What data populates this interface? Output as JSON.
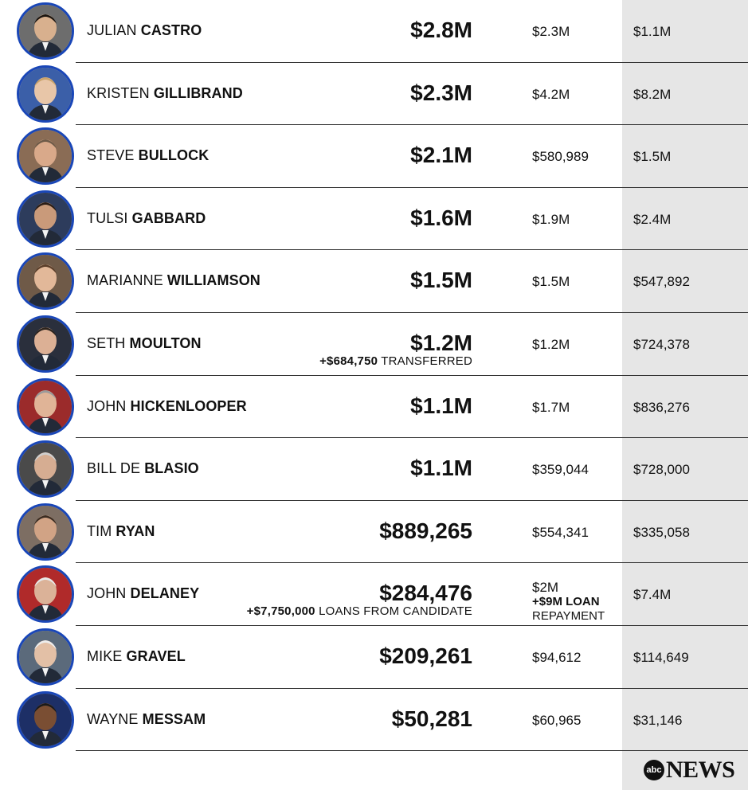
{
  "brand": {
    "badge": "abc",
    "wordmark": "NEWS"
  },
  "rows": [
    {
      "first": "JULIAN",
      "last": "CASTRO",
      "amount": "$2.8M",
      "note_bold": "",
      "note_rest": "",
      "col2": "$2.3M",
      "col2_extra_bold": "",
      "col2_extra": "",
      "col3": "$1.1M",
      "photo": "julian-castro-photo"
    },
    {
      "first": "KRISTEN",
      "last": "GILLIBRAND",
      "amount": "$2.3M",
      "note_bold": "",
      "note_rest": "",
      "col2": "$4.2M",
      "col2_extra_bold": "",
      "col2_extra": "",
      "col3": "$8.2M",
      "photo": "kristen-gillibrand-photo"
    },
    {
      "first": "STEVE",
      "last": "BULLOCK",
      "amount": "$2.1M",
      "note_bold": "",
      "note_rest": "",
      "col2": "$580,989",
      "col2_extra_bold": "",
      "col2_extra": "",
      "col3": "$1.5M",
      "photo": "steve-bullock-photo"
    },
    {
      "first": "TULSI",
      "last": "GABBARD",
      "amount": "$1.6M",
      "note_bold": "",
      "note_rest": "",
      "col2": "$1.9M",
      "col2_extra_bold": "",
      "col2_extra": "",
      "col3": "$2.4M",
      "photo": "tulsi-gabbard-photo"
    },
    {
      "first": "MARIANNE",
      "last": "WILLIAMSON",
      "amount": "$1.5M",
      "note_bold": "",
      "note_rest": "",
      "col2": "$1.5M",
      "col2_extra_bold": "",
      "col2_extra": "",
      "col3": "$547,892",
      "photo": "marianne-williamson-photo"
    },
    {
      "first": "SETH",
      "last": "MOULTON",
      "amount": "$1.2M",
      "note_bold": "+$684,750",
      "note_rest": " TRANSFERRED",
      "col2": "$1.2M",
      "col2_extra_bold": "",
      "col2_extra": "",
      "col3": "$724,378",
      "photo": "seth-moulton-photo"
    },
    {
      "first": "JOHN",
      "last": "HICKENLOOPER",
      "amount": "$1.1M",
      "note_bold": "",
      "note_rest": "",
      "col2": "$1.7M",
      "col2_extra_bold": "",
      "col2_extra": "",
      "col3": "$836,276",
      "photo": "john-hickenlooper-photo"
    },
    {
      "first": "BILL DE",
      "last": "BLASIO",
      "amount": "$1.1M",
      "note_bold": "",
      "note_rest": "",
      "col2": "$359,044",
      "col2_extra_bold": "",
      "col2_extra": "",
      "col3": "$728,000",
      "photo": "bill-de-blasio-photo"
    },
    {
      "first": "TIM",
      "last": "RYAN",
      "amount": "$889,265",
      "note_bold": "",
      "note_rest": "",
      "col2": "$554,341",
      "col2_extra_bold": "",
      "col2_extra": "",
      "col3": "$335,058",
      "photo": "tim-ryan-photo"
    },
    {
      "first": "JOHN",
      "last": "DELANEY",
      "amount": "$284,476",
      "note_bold": "+$7,750,000",
      "note_rest": " LOANS FROM CANDIDATE",
      "col2": "$2M",
      "col2_extra_bold": "+$9M LOAN",
      "col2_extra": "REPAYMENT",
      "col3": "$7.4M",
      "photo": "john-delaney-photo"
    },
    {
      "first": "MIKE",
      "last": "GRAVEL",
      "amount": "$209,261",
      "note_bold": "",
      "note_rest": "",
      "col2": "$94,612",
      "col2_extra_bold": "",
      "col2_extra": "",
      "col3": "$114,649",
      "photo": "mike-gravel-photo"
    },
    {
      "first": "WAYNE",
      "last": "MESSAM",
      "amount": "$50,281",
      "note_bold": "",
      "note_rest": "",
      "col2": "$60,965",
      "col2_extra_bold": "",
      "col2_extra": "",
      "col3": "$31,146",
      "photo": "wayne-messam-photo"
    }
  ],
  "colors": {
    "ring": "#1a47b8",
    "shade_column": "#e6e6e6",
    "rule": "#333333"
  }
}
